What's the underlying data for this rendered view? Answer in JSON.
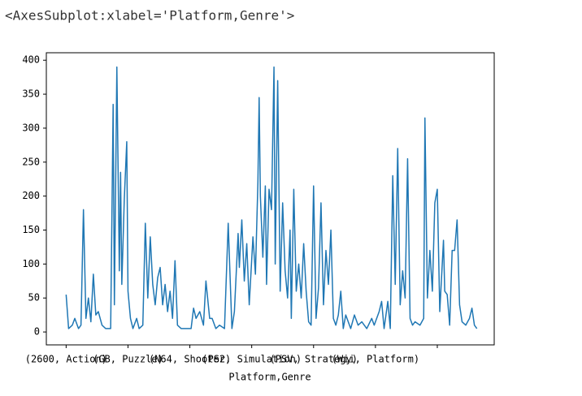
{
  "chart_data": {
    "type": "line",
    "header": "<AxesSubplot:xlabel='Platform,Genre'>",
    "xlabel": "Platform,Genre",
    "color": "#1f77b4",
    "x": [
      0,
      2,
      5,
      7,
      10,
      12,
      14,
      16,
      18,
      20,
      22,
      24,
      26,
      29,
      32,
      36,
      38,
      39,
      41,
      43,
      44,
      45,
      47,
      49,
      50,
      52,
      54,
      57,
      59,
      62,
      64,
      66,
      68,
      70,
      72,
      74,
      76,
      78,
      80,
      82,
      84,
      86,
      88,
      90,
      93,
      97,
      101,
      103,
      105,
      108,
      111,
      113,
      116,
      118,
      121,
      124,
      128,
      131,
      134,
      136,
      139,
      140,
      142,
      144,
      146,
      148,
      151,
      153,
      155,
      156,
      157,
      159,
      161,
      162,
      164,
      166,
      168,
      169,
      171,
      173,
      175,
      177,
      179,
      181,
      182,
      184,
      186,
      188,
      190,
      192,
      194,
      196,
      198,
      200,
      202,
      204,
      206,
      208,
      210,
      212,
      214,
      216,
      218,
      220,
      222,
      224,
      226,
      230,
      233,
      236,
      239,
      243,
      247,
      249,
      253,
      255,
      257,
      260,
      262,
      264,
      266,
      268,
      270,
      272,
      274,
      276,
      278,
      280,
      282,
      286,
      289,
      290,
      292,
      294,
      296,
      298,
      300,
      302,
      305,
      306,
      308,
      310,
      312,
      314,
      316,
      318,
      320,
      323,
      326,
      328,
      330,
      332
    ],
    "values": [
      55,
      5,
      10,
      20,
      5,
      10,
      180,
      20,
      50,
      15,
      85,
      25,
      30,
      10,
      5,
      5,
      335,
      40,
      390,
      90,
      235,
      70,
      195,
      280,
      60,
      20,
      5,
      20,
      5,
      10,
      160,
      50,
      140,
      70,
      40,
      80,
      95,
      40,
      70,
      30,
      60,
      20,
      105,
      10,
      5,
      5,
      5,
      35,
      20,
      30,
      10,
      75,
      20,
      20,
      5,
      10,
      5,
      160,
      5,
      30,
      145,
      95,
      165,
      75,
      130,
      40,
      140,
      85,
      220,
      345,
      200,
      110,
      215,
      70,
      210,
      180,
      390,
      100,
      370,
      60,
      190,
      90,
      50,
      150,
      20,
      210,
      60,
      100,
      50,
      130,
      60,
      15,
      10,
      215,
      20,
      65,
      190,
      40,
      120,
      70,
      150,
      20,
      10,
      25,
      60,
      5,
      25,
      5,
      25,
      10,
      15,
      5,
      20,
      10,
      30,
      45,
      5,
      45,
      5,
      230,
      70,
      270,
      40,
      90,
      50,
      255,
      20,
      10,
      15,
      10,
      20,
      315,
      50,
      120,
      60,
      190,
      210,
      30,
      135,
      60,
      55,
      10,
      120,
      120,
      165,
      40,
      15,
      10,
      20,
      35,
      10,
      5
    ],
    "xlim": [
      -16,
      346
    ],
    "ylim": [
      -19,
      411
    ],
    "yticks": [
      0,
      50,
      100,
      150,
      200,
      250,
      300,
      350,
      400
    ],
    "xticks": [
      {
        "value": 0,
        "label": "(2600, Action)"
      },
      {
        "value": 50,
        "label": "(GB, Puzzle)"
      },
      {
        "value": 100,
        "label": "(N64, Shooter)"
      },
      {
        "value": 150,
        "label": "(PS2, Simulation)"
      },
      {
        "value": 200,
        "label": "(PSV, Strategy)"
      },
      {
        "value": 250,
        "label": "(Wii, Platform)"
      },
      {
        "value": 300,
        "label": null
      }
    ]
  }
}
